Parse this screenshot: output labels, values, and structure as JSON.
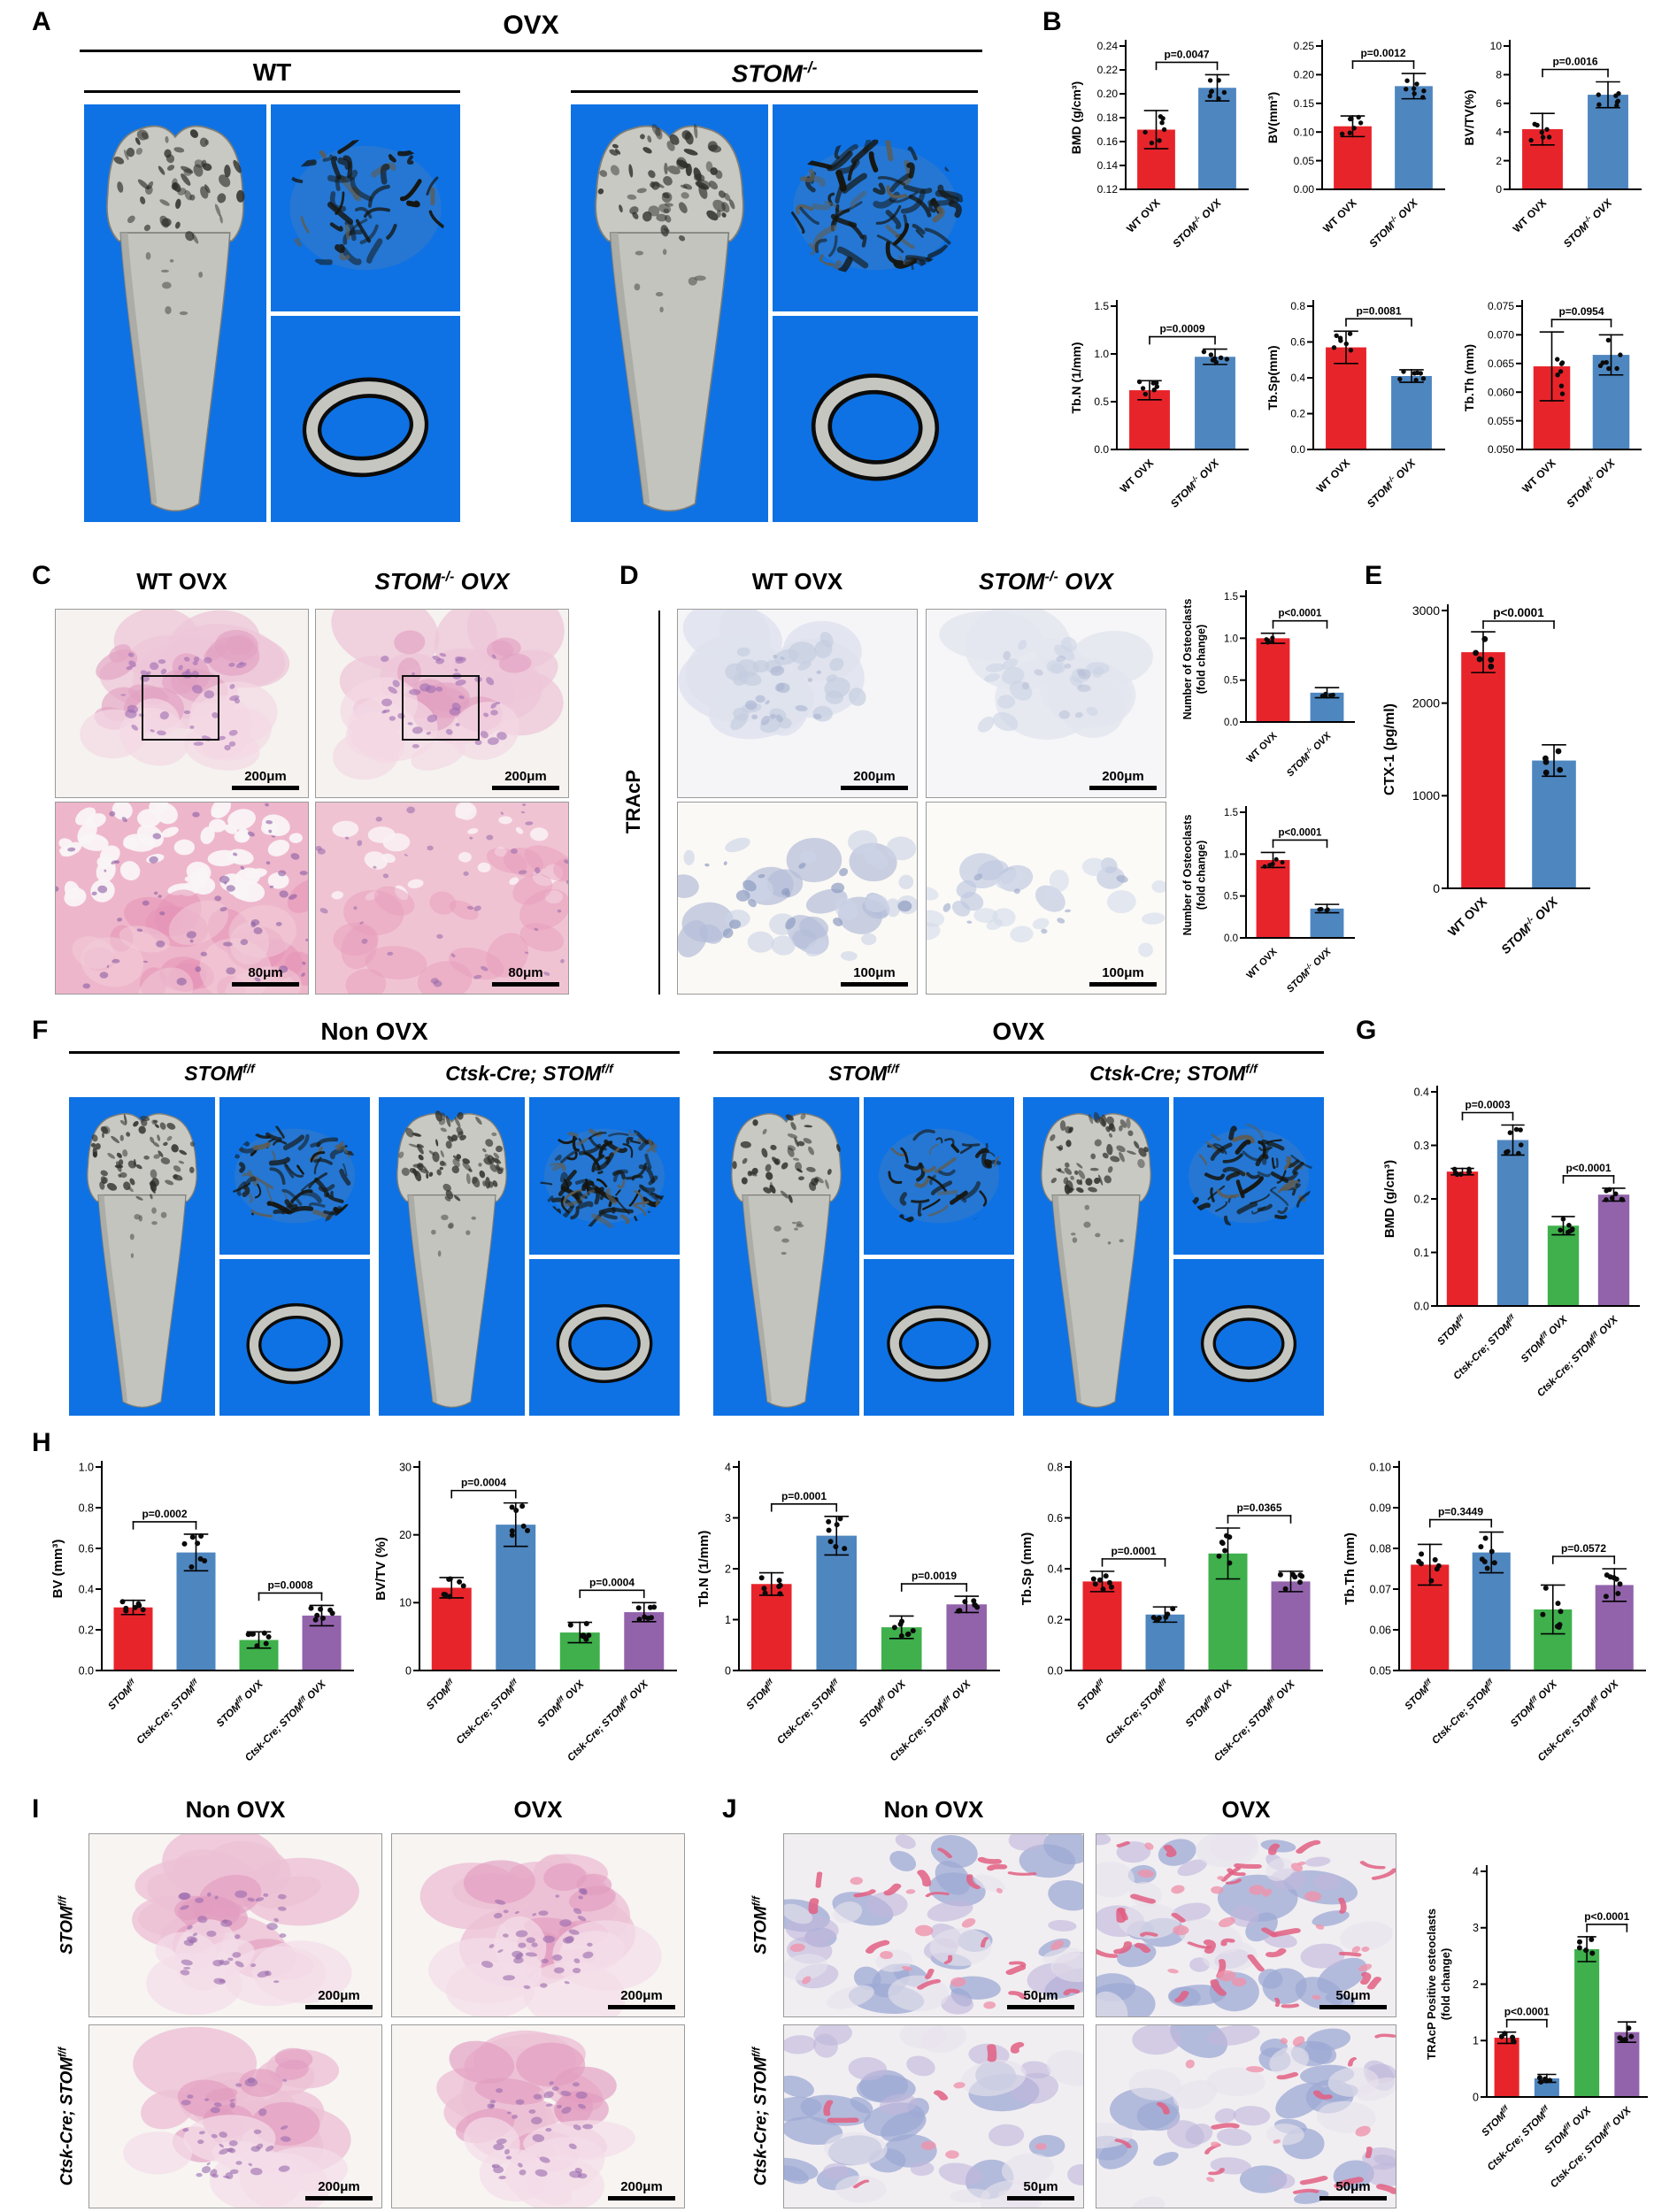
{
  "palette": {
    "red": "#e8242b",
    "blue": "#4e86c0",
    "green": "#3fb04c",
    "purple": "#9263ab",
    "microct_bg": "#0e72e4",
    "bone_gray": "#c9c9c3"
  },
  "figure": {
    "panels": {
      "A": {
        "letter": "A",
        "title": "OVX",
        "groups": [
          "WT",
          "STOM^{-/-}"
        ]
      },
      "B": {
        "letter": "B"
      },
      "C": {
        "letter": "C",
        "headers": [
          "WT OVX",
          "STOM^{-/-} OVX"
        ],
        "scale_top": "200μm",
        "scale_bottom": "80μm"
      },
      "D": {
        "letter": "D",
        "stain": "TRAcP",
        "headers": [
          "WT OVX",
          "STOM^{-/-} OVX"
        ],
        "scale_top": "200μm",
        "scale_bottom": "100μm"
      },
      "E": {
        "letter": "E"
      },
      "F": {
        "letter": "F",
        "titles": [
          "Non OVX",
          "OVX"
        ],
        "groups": [
          "STOM^{f/f}",
          "Ctsk-Cre; STOM^{f/f}",
          "STOM^{f/f}",
          "Ctsk-Cre; STOM^{f/f}"
        ]
      },
      "G": {
        "letter": "G"
      },
      "H": {
        "letter": "H"
      },
      "I": {
        "letter": "I",
        "headers": [
          "Non OVX",
          "OVX"
        ],
        "rows": [
          "STOM^{f/f}",
          "Ctsk-Cre; STOM^{f/f}"
        ],
        "scale": "200μm"
      },
      "J": {
        "letter": "J",
        "headers": [
          "Non OVX",
          "OVX"
        ],
        "rows": [
          "STOM^{f/f}",
          "Ctsk-Cre; STOM^{f/f}"
        ],
        "scale": "50μm"
      }
    }
  },
  "chart_data": [
    {
      "id": "B-BMD",
      "type": "bar",
      "ylabel": "BMD (g/cm³)",
      "ylim": [
        0.12,
        0.24
      ],
      "yticks": [
        "0.12",
        "0.14",
        "0.16",
        "0.18",
        "0.20",
        "0.22",
        "0.24"
      ],
      "categories": [
        "WT OVX",
        "STOM^{-/-} OVX"
      ],
      "values": [
        0.17,
        0.205
      ],
      "sd": [
        0.016,
        0.011
      ],
      "colors": [
        "red",
        "blue"
      ],
      "significance": [
        {
          "groups": [
            0,
            1
          ],
          "label": "p=0.0047"
        }
      ]
    },
    {
      "id": "B-BV",
      "type": "bar",
      "ylabel": "BV(mm³)",
      "ylim": [
        0,
        0.25
      ],
      "yticks": [
        "0.00",
        "0.05",
        "0.10",
        "0.15",
        "0.20",
        "0.25"
      ],
      "categories": [
        "WT OVX",
        "STOM^{-/-} OVX"
      ],
      "values": [
        0.11,
        0.18
      ],
      "sd": [
        0.018,
        0.022
      ],
      "colors": [
        "red",
        "blue"
      ],
      "significance": [
        {
          "groups": [
            0,
            1
          ],
          "label": "p=0.0012"
        }
      ]
    },
    {
      "id": "B-BVTV",
      "type": "bar",
      "ylabel": "BV/TV(%)",
      "ylim": [
        0,
        10
      ],
      "yticks": [
        "0",
        "2",
        "4",
        "6",
        "8",
        "10"
      ],
      "categories": [
        "WT OVX",
        "STOM^{-/-} OVX"
      ],
      "values": [
        4.2,
        6.6
      ],
      "sd": [
        1.1,
        0.9
      ],
      "colors": [
        "red",
        "blue"
      ],
      "significance": [
        {
          "groups": [
            0,
            1
          ],
          "label": "p=0.0016"
        }
      ]
    },
    {
      "id": "B-TbN",
      "type": "bar",
      "ylabel": "Tb.N (1/mm)",
      "ylim": [
        0,
        1.5
      ],
      "yticks": [
        "0.0",
        "0.5",
        "1.0",
        "1.5"
      ],
      "categories": [
        "WT OVX",
        "STOM^{-/-} OVX"
      ],
      "values": [
        0.62,
        0.97
      ],
      "sd": [
        0.1,
        0.08
      ],
      "colors": [
        "red",
        "blue"
      ],
      "significance": [
        {
          "groups": [
            0,
            1
          ],
          "label": "p=0.0009"
        }
      ]
    },
    {
      "id": "B-TbSp",
      "type": "bar",
      "ylabel": "Tb.Sp(mm)",
      "ylim": [
        0,
        0.8
      ],
      "yticks": [
        "0.0",
        "0.2",
        "0.4",
        "0.6",
        "0.8"
      ],
      "categories": [
        "WT OVX",
        "STOM^{-/-} OVX"
      ],
      "values": [
        0.57,
        0.41
      ],
      "sd": [
        0.09,
        0.035
      ],
      "colors": [
        "red",
        "blue"
      ],
      "significance": [
        {
          "groups": [
            0,
            1
          ],
          "label": "p=0.0081"
        }
      ]
    },
    {
      "id": "B-TbTh",
      "type": "bar",
      "ylabel": "Tb.Th (mm)",
      "ylim": [
        0.05,
        0.075
      ],
      "yticks": [
        "0.050",
        "0.055",
        "0.060",
        "0.065",
        "0.070",
        "0.075"
      ],
      "categories": [
        "WT OVX",
        "STOM^{-/-} OVX"
      ],
      "values": [
        0.0645,
        0.0665
      ],
      "sd": [
        0.006,
        0.0035
      ],
      "colors": [
        "red",
        "blue"
      ],
      "significance": [
        {
          "groups": [
            0,
            1
          ],
          "label": "p=0.0954"
        }
      ]
    },
    {
      "id": "D-OC1",
      "type": "bar",
      "ylabel": "Number of Osteoclasts\n(fold change)",
      "ylim": [
        0,
        1.5
      ],
      "yticks": [
        "0.0",
        "0.5",
        "1.0",
        "1.5"
      ],
      "categories": [
        "WT OVX",
        "STOM^{-/-} OVX"
      ],
      "values": [
        1.0,
        0.35
      ],
      "sd": [
        0.06,
        0.06
      ],
      "colors": [
        "red",
        "blue"
      ],
      "significance": [
        {
          "groups": [
            0,
            1
          ],
          "label": "p<0.0001"
        }
      ]
    },
    {
      "id": "D-OC2",
      "type": "bar",
      "ylabel": "Number of Osteoclasts\n(fold change)",
      "ylim": [
        0,
        1.5
      ],
      "yticks": [
        "0.0",
        "0.5",
        "1.0",
        "1.5"
      ],
      "categories": [
        "WT OVX",
        "STOM^{-/-} OVX"
      ],
      "values": [
        0.93,
        0.35
      ],
      "sd": [
        0.09,
        0.05
      ],
      "colors": [
        "red",
        "blue"
      ],
      "significance": [
        {
          "groups": [
            0,
            1
          ],
          "label": "p<0.0001"
        }
      ]
    },
    {
      "id": "E-CTX",
      "type": "bar",
      "ylabel": "CTX-1 (pg/ml)",
      "ylim": [
        0,
        3000
      ],
      "yticks": [
        "0",
        "1000",
        "2000",
        "3000"
      ],
      "categories": [
        "WT OVX",
        "STOM^{-/-} OVX"
      ],
      "values": [
        2550,
        1380
      ],
      "sd": [
        220,
        170
      ],
      "colors": [
        "red",
        "blue"
      ],
      "significance": [
        {
          "groups": [
            0,
            1
          ],
          "label": "p<0.0001"
        }
      ]
    },
    {
      "id": "G-BMD",
      "type": "bar",
      "ylabel": "BMD (g/cm³)",
      "ylim": [
        0,
        0.4
      ],
      "yticks": [
        "0.0",
        "0.1",
        "0.2",
        "0.3",
        "0.4"
      ],
      "categories": [
        "STOM^{f/f}",
        "Ctsk-Cre; STOM^{f/f}",
        "STOM^{f/f} OVX",
        "Ctsk-Cre; STOM^{f/f} OVX"
      ],
      "values": [
        0.251,
        0.31,
        0.15,
        0.208
      ],
      "sd": [
        0.006,
        0.028,
        0.017,
        0.012
      ],
      "colors": [
        "red",
        "blue",
        "green",
        "purple"
      ],
      "significance": [
        {
          "groups": [
            0,
            1
          ],
          "label": "p=0.0003"
        },
        {
          "groups": [
            2,
            3
          ],
          "label": "p<0.0001"
        }
      ]
    },
    {
      "id": "H-BV",
      "type": "bar",
      "ylabel": "BV (mm³)",
      "ylim": [
        0,
        1.0
      ],
      "yticks": [
        "0.0",
        "0.2",
        "0.4",
        "0.6",
        "0.8",
        "1.0"
      ],
      "categories": [
        "STOM^{f/f}",
        "Ctsk-Cre; STOM^{f/f}",
        "STOM^{f/f} OVX",
        "Ctsk-Cre; STOM^{f/f} OVX"
      ],
      "values": [
        0.31,
        0.58,
        0.15,
        0.27
      ],
      "sd": [
        0.035,
        0.09,
        0.04,
        0.05
      ],
      "colors": [
        "red",
        "blue",
        "green",
        "purple"
      ],
      "significance": [
        {
          "groups": [
            0,
            1
          ],
          "label": "p=0.0002"
        },
        {
          "groups": [
            2,
            3
          ],
          "label": "p=0.0008"
        }
      ]
    },
    {
      "id": "H-BVTV",
      "type": "bar",
      "ylabel": "BV/TV (%)",
      "ylim": [
        0,
        30
      ],
      "yticks": [
        "0",
        "10",
        "20",
        "30"
      ],
      "categories": [
        "STOM^{f/f}",
        "Ctsk-Cre; STOM^{f/f}",
        "STOM^{f/f} OVX",
        "Ctsk-Cre; STOM^{f/f} OVX"
      ],
      "values": [
        12.2,
        21.5,
        5.6,
        8.6
      ],
      "sd": [
        1.5,
        3.2,
        1.5,
        1.4
      ],
      "colors": [
        "red",
        "blue",
        "green",
        "purple"
      ],
      "significance": [
        {
          "groups": [
            0,
            1
          ],
          "label": "p=0.0004"
        },
        {
          "groups": [
            2,
            3
          ],
          "label": "p=0.0004"
        }
      ]
    },
    {
      "id": "H-TbN",
      "type": "bar",
      "ylabel": "Tb.N (1/mm)",
      "ylim": [
        0,
        4
      ],
      "yticks": [
        "0",
        "1",
        "2",
        "3",
        "4"
      ],
      "categories": [
        "STOM^{f/f}",
        "Ctsk-Cre; STOM^{f/f}",
        "STOM^{f/f} OVX",
        "Ctsk-Cre; STOM^{f/f} OVX"
      ],
      "values": [
        1.7,
        2.65,
        0.85,
        1.3
      ],
      "sd": [
        0.22,
        0.38,
        0.22,
        0.16
      ],
      "colors": [
        "red",
        "blue",
        "green",
        "purple"
      ],
      "significance": [
        {
          "groups": [
            0,
            1
          ],
          "label": "p=0.0001"
        },
        {
          "groups": [
            2,
            3
          ],
          "label": "p=0.0019"
        }
      ]
    },
    {
      "id": "H-TbSp",
      "type": "bar",
      "ylabel": "Tb.Sp (mm)",
      "ylim": [
        0,
        0.8
      ],
      "yticks": [
        "0.0",
        "0.2",
        "0.4",
        "0.6",
        "0.8"
      ],
      "categories": [
        "STOM^{f/f}",
        "Ctsk-Cre; STOM^{f/f}",
        "STOM^{f/f} OVX",
        "Ctsk-Cre; STOM^{f/f} OVX"
      ],
      "values": [
        0.35,
        0.22,
        0.46,
        0.35
      ],
      "sd": [
        0.04,
        0.03,
        0.1,
        0.04
      ],
      "colors": [
        "red",
        "blue",
        "green",
        "purple"
      ],
      "significance": [
        {
          "groups": [
            0,
            1
          ],
          "label": "p=0.0001"
        },
        {
          "groups": [
            2,
            3
          ],
          "label": "p=0.0365"
        }
      ]
    },
    {
      "id": "H-TbTh",
      "type": "bar",
      "ylabel": "Tb.Th (mm)",
      "ylim": [
        0.05,
        0.1
      ],
      "yticks": [
        "0.05",
        "0.06",
        "0.07",
        "0.08",
        "0.09",
        "0.10"
      ],
      "categories": [
        "STOM^{f/f}",
        "Ctsk-Cre; STOM^{f/f}",
        "STOM^{f/f} OVX",
        "Ctsk-Cre; STOM^{f/f} OVX"
      ],
      "values": [
        0.076,
        0.079,
        0.065,
        0.071
      ],
      "sd": [
        0.005,
        0.005,
        0.006,
        0.004
      ],
      "colors": [
        "red",
        "blue",
        "green",
        "purple"
      ],
      "significance": [
        {
          "groups": [
            0,
            1
          ],
          "label": "p=0.3449"
        },
        {
          "groups": [
            2,
            3
          ],
          "label": "p=0.0572"
        }
      ]
    },
    {
      "id": "J-TRACP",
      "type": "bar",
      "ylabel": "TRAcP Positive osteoclasts\n(fold change)",
      "ylim": [
        0,
        4
      ],
      "yticks": [
        "0",
        "1",
        "2",
        "3",
        "4"
      ],
      "categories": [
        "STOM^{f/f}",
        "Ctsk-Cre; STOM^{f/f}",
        "STOM^{f/f} OVX",
        "Ctsk-Cre; STOM^{f/f} OVX"
      ],
      "values": [
        1.05,
        0.33,
        2.62,
        1.15
      ],
      "sd": [
        0.1,
        0.07,
        0.22,
        0.18
      ],
      "colors": [
        "red",
        "blue",
        "green",
        "purple"
      ],
      "significance": [
        {
          "groups": [
            0,
            1
          ],
          "label": "p<0.0001"
        },
        {
          "groups": [
            2,
            3
          ],
          "label": "p<0.0001"
        }
      ]
    }
  ]
}
